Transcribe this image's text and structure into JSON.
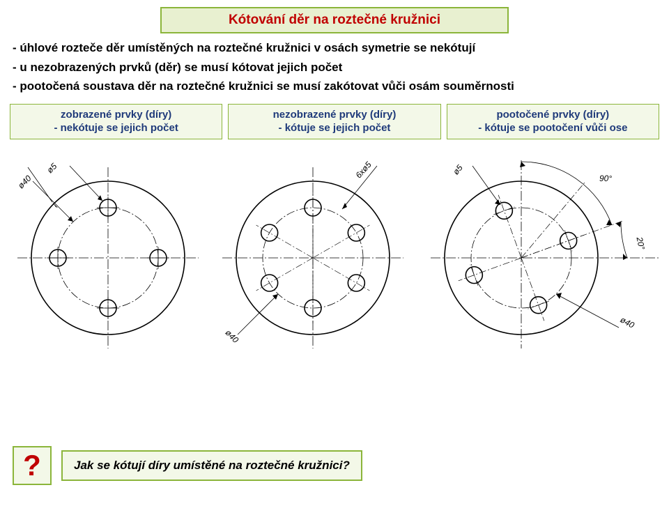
{
  "title": "Kótování děr na roztečné kružnici",
  "bullets": [
    "- úhlové rozteče děr umístěných na roztečné kružnici v osách symetrie se nekótují",
    "- u nezobrazených prvků (děr) se musí kótovat jejich počet",
    "- pootočená soustava děr na roztečné kružnici se musí zakótovat vůči osám souměrnosti"
  ],
  "columns": [
    {
      "line1": "zobrazené prvky (díry)",
      "line2": "- nekótuje se jejich počet"
    },
    {
      "line1": "nezobrazené prvky (díry)",
      "line2": "- kótuje se jejich počet"
    },
    {
      "line1": "pootočené prvky (díry)",
      "line2": "- kótuje se pootočení vůči ose"
    }
  ],
  "diagrams": {
    "outer_radius": 110,
    "pitch_radius": 72,
    "hole_radius": 12,
    "stroke": "#000000",
    "thin_stroke_width": 0.8,
    "thick_stroke_width": 1.6,
    "d1": {
      "hole_count": 4,
      "labels": {
        "diameter_hole": "ø5",
        "diameter_pitch": "ø40"
      }
    },
    "d2": {
      "hole_count": 6,
      "labels": {
        "count_diameter": "6xø5",
        "diameter_pitch": "ø40"
      }
    },
    "d3": {
      "hole_count": 4,
      "rotation_deg": 20,
      "labels": {
        "angle_between": "90°",
        "angle_offset": "20°",
        "diameter_hole": "ø5",
        "diameter_pitch": "ø40"
      }
    }
  },
  "question_mark": "?",
  "question_text": "Jak se kótují díry umístěné na roztečné kružnici?",
  "colors": {
    "box_border": "#8bb53a",
    "box_bg": "#e8f0d0",
    "col_bg": "#f3f8e8",
    "title_color": "#c00000",
    "col_text": "#1f3a7a"
  }
}
